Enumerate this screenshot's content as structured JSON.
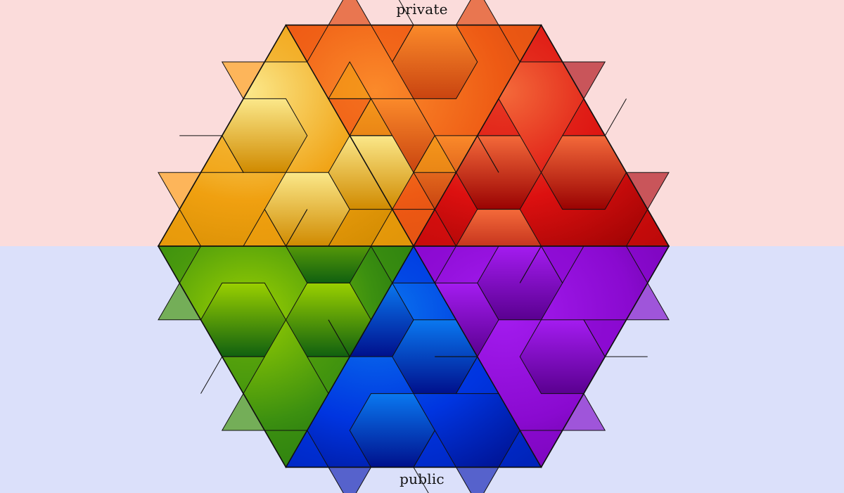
{
  "labels": {
    "top": "private",
    "bottom": "public"
  },
  "colors": {
    "background_top": "#fbdcdb",
    "background_bottom": "#dbe0fa",
    "outline": "#111111"
  },
  "sectors": [
    {
      "name": "orange-red",
      "hex": "#ee5a14",
      "hex_light": "#fb8a2a",
      "hex_dark": "#c94410",
      "edge": "#e97650"
    },
    {
      "name": "red",
      "hex": "#dc1010",
      "hex_light": "#f46a3a",
      "hex_dark": "#9a0202",
      "edge": "#c9555a"
    },
    {
      "name": "purple",
      "hex": "#8a0ad0",
      "hex_light": "#a41cf0",
      "hex_dark": "#5a0090",
      "edge": "#9f55da"
    },
    {
      "name": "blue",
      "hex": "#0035e0",
      "hex_light": "#0a78f0",
      "hex_dark": "#00108c",
      "edge": "#5662cc"
    },
    {
      "name": "green",
      "hex": "#3c9010",
      "hex_light": "#9ad000",
      "hex_dark": "#106010",
      "edge": "#74ae58"
    },
    {
      "name": "yellow-orange",
      "hex": "#f0a010",
      "hex_light": "#fbe88a",
      "hex_dark": "#d08a00",
      "edge": "#fdb55a"
    }
  ]
}
